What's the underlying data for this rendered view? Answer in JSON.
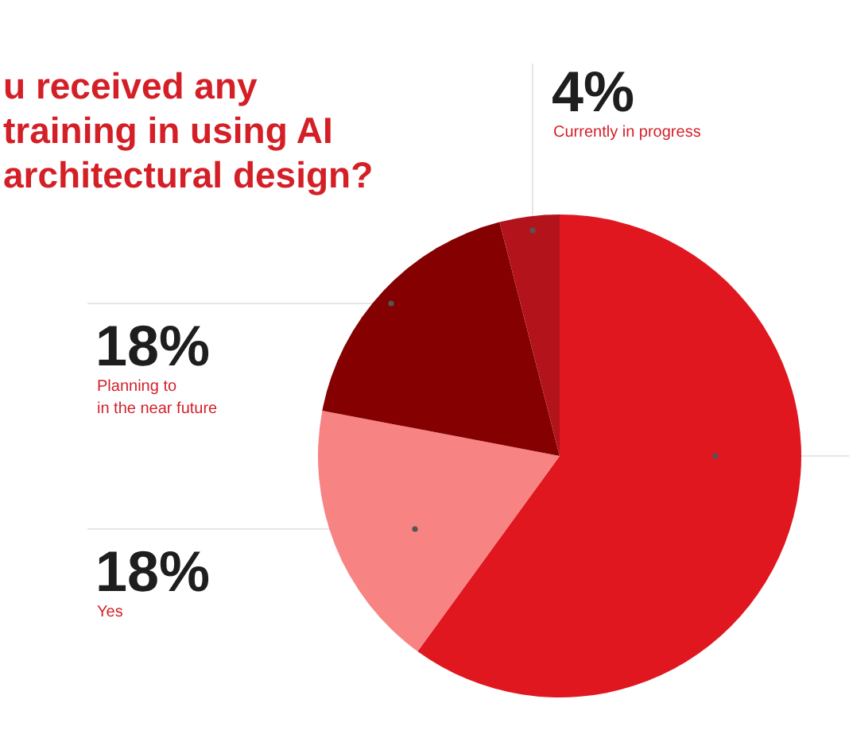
{
  "chart_data": {
    "type": "pie",
    "title": "u received any\ntraining in using AI\narchitectural design?",
    "categories": [
      null,
      "Yes",
      "Planning to\nin the near future",
      "Currently in progress"
    ],
    "values": [
      60,
      18,
      18,
      4
    ],
    "value_labels": [
      null,
      "18%",
      "18%",
      "4%"
    ],
    "colors": [
      "#e0171f",
      "#f88383",
      "#850000",
      "#b3141b"
    ],
    "legend": false
  }
}
